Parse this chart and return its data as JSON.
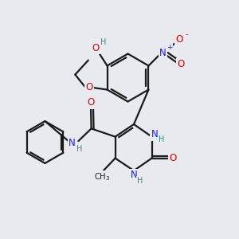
{
  "bg_color": "#e8eaf0",
  "bond_color": "#1a1a1a",
  "bond_width": 1.6,
  "atom_colors": {
    "C": "#1a1a1a",
    "H": "#2e8b8b",
    "N": "#1a1aff",
    "O": "#dd0000",
    "N_plus": "#1a1aff",
    "O_minus": "#dd0000"
  },
  "font_size_atom": 8.5,
  "font_size_sub": 7.0,
  "font_size_sign": 6.5
}
